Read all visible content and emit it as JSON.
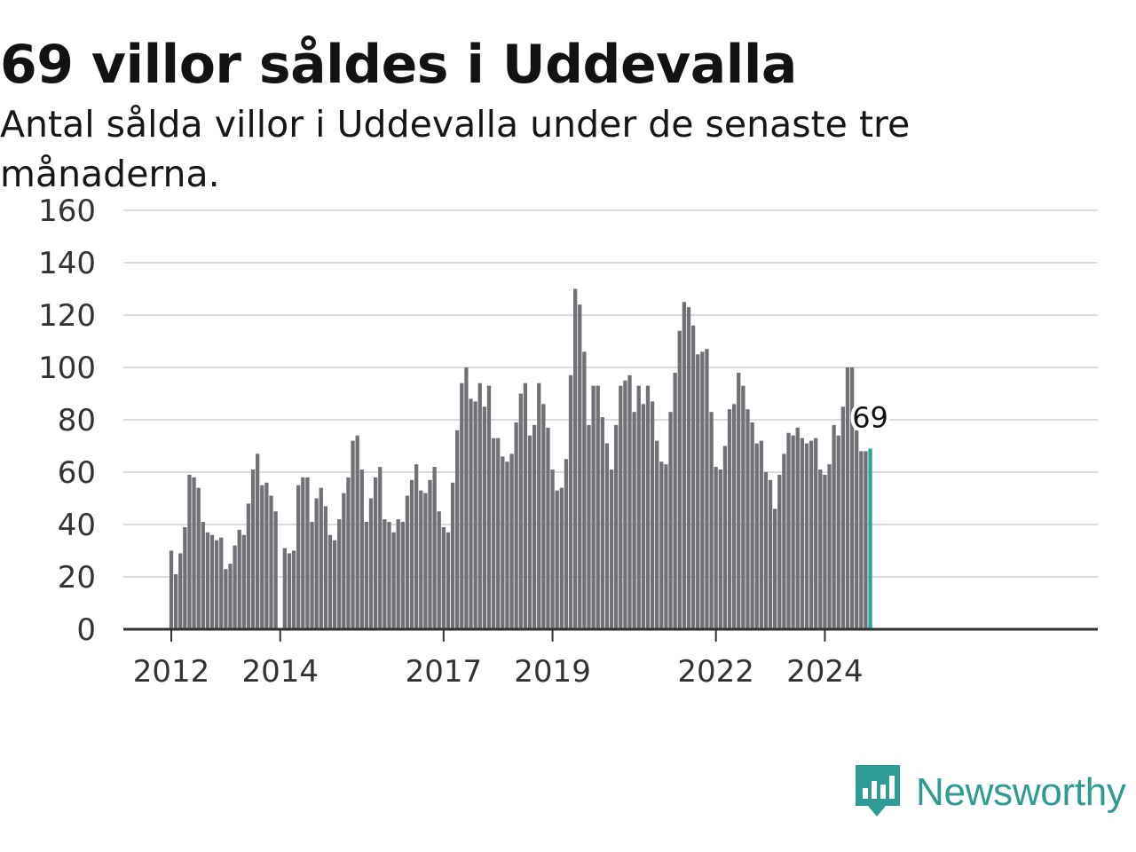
{
  "chart_data": {
    "type": "bar",
    "title": "69 villor såldes i Uddevalla",
    "subtitle": "Antal sålda villor i Uddevalla under de senaste tre månaderna.",
    "ylim": [
      0,
      160
    ],
    "yticks": [
      0,
      20,
      40,
      60,
      80,
      100,
      120,
      140,
      160
    ],
    "xticks": [
      "2012",
      "2014",
      "2017",
      "2019",
      "2022",
      "2024"
    ],
    "grid": true,
    "bar_color": "#707076",
    "highlight_color": "#26a69a",
    "highlight_label": "69",
    "values": [
      30,
      21,
      29,
      39,
      59,
      58,
      54,
      41,
      37,
      36,
      34,
      35,
      23,
      25,
      32,
      38,
      36,
      48,
      61,
      67,
      55,
      56,
      51,
      45,
      0,
      31,
      29,
      30,
      55,
      58,
      58,
      41,
      50,
      54,
      47,
      36,
      34,
      42,
      52,
      58,
      72,
      74,
      61,
      41,
      50,
      58,
      62,
      42,
      41,
      37,
      42,
      41,
      51,
      57,
      63,
      53,
      52,
      57,
      62,
      45,
      39,
      37,
      56,
      76,
      94,
      100,
      88,
      87,
      94,
      85,
      93,
      73,
      73,
      66,
      64,
      67,
      79,
      90,
      94,
      74,
      78,
      94,
      86,
      77,
      61,
      53,
      54,
      65,
      97,
      130,
      124,
      106,
      78,
      93,
      93,
      81,
      71,
      61,
      78,
      93,
      95,
      97,
      83,
      93,
      86,
      93,
      87,
      72,
      64,
      63,
      83,
      98,
      114,
      125,
      123,
      116,
      105,
      106,
      107,
      83,
      62,
      61,
      70,
      84,
      86,
      98,
      93,
      84,
      79,
      71,
      72,
      60,
      57,
      46,
      59,
      67,
      75,
      74,
      77,
      73,
      71,
      72,
      73,
      61,
      59,
      63,
      78,
      74,
      85,
      100,
      100,
      76,
      68,
      68,
      69
    ]
  },
  "brand": {
    "name": "Newsworthy",
    "logo_icon": "newsworthy-logo-icon"
  }
}
